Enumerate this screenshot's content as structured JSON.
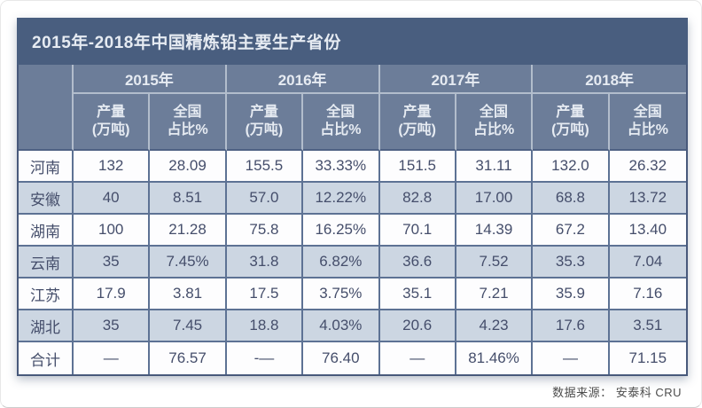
{
  "page": {
    "title": "2015年-2018年中国精炼铅主要生产省份",
    "source_note": "数据来源： 安泰科 CRU"
  },
  "colors": {
    "title_bar_bg": "#495e7f",
    "header_bg": "#6c7d99",
    "row_alt_bg": "#ccd6e2",
    "row_bg": "#fdfdfe",
    "grid_dark": "#5d7294",
    "grid_light": "#b2bdcc",
    "outer_border": "#48597b",
    "text_dark": "#454e6b",
    "header_text": "#e6ebf2"
  },
  "chart_data": {
    "type": "table",
    "title": "2015年-2018年中国精炼铅主要生产省份",
    "column_groups": [
      "2015年",
      "2016年",
      "2017年",
      "2018年"
    ],
    "sub_columns": [
      "产量\n(万吨)",
      "全国\n占比%"
    ],
    "corner_label": "",
    "rows": [
      {
        "province": "河南",
        "values": [
          "132",
          "28.09",
          "155.5",
          "33.33%",
          "151.5",
          "31.11",
          "132.0",
          "26.32"
        ]
      },
      {
        "province": "安徽",
        "values": [
          "40",
          "8.51",
          "57.0",
          "12.22%",
          "82.8",
          "17.00",
          "68.8",
          "13.72"
        ]
      },
      {
        "province": "湖南",
        "values": [
          "100",
          "21.28",
          "75.8",
          "16.25%",
          "70.1",
          "14.39",
          "67.2",
          "13.40"
        ]
      },
      {
        "province": "云南",
        "values": [
          "35",
          "7.45%",
          "31.8",
          "6.82%",
          "36.6",
          "7.52",
          "35.3",
          "7.04"
        ]
      },
      {
        "province": "江苏",
        "values": [
          "17.9",
          "3.81",
          "17.5",
          "3.75%",
          "35.1",
          "7.21",
          "35.9",
          "7.16"
        ]
      },
      {
        "province": "湖北",
        "values": [
          "35",
          "7.45",
          "18.8",
          "4.03%",
          "20.6",
          "4.23",
          "17.6",
          "3.51"
        ]
      },
      {
        "province": "合计",
        "values": [
          "—",
          "76.57",
          "-—",
          "76.40",
          "—",
          "81.46%",
          "—",
          "71.15"
        ]
      }
    ],
    "source": "数据来源： 安泰科 CRU"
  }
}
